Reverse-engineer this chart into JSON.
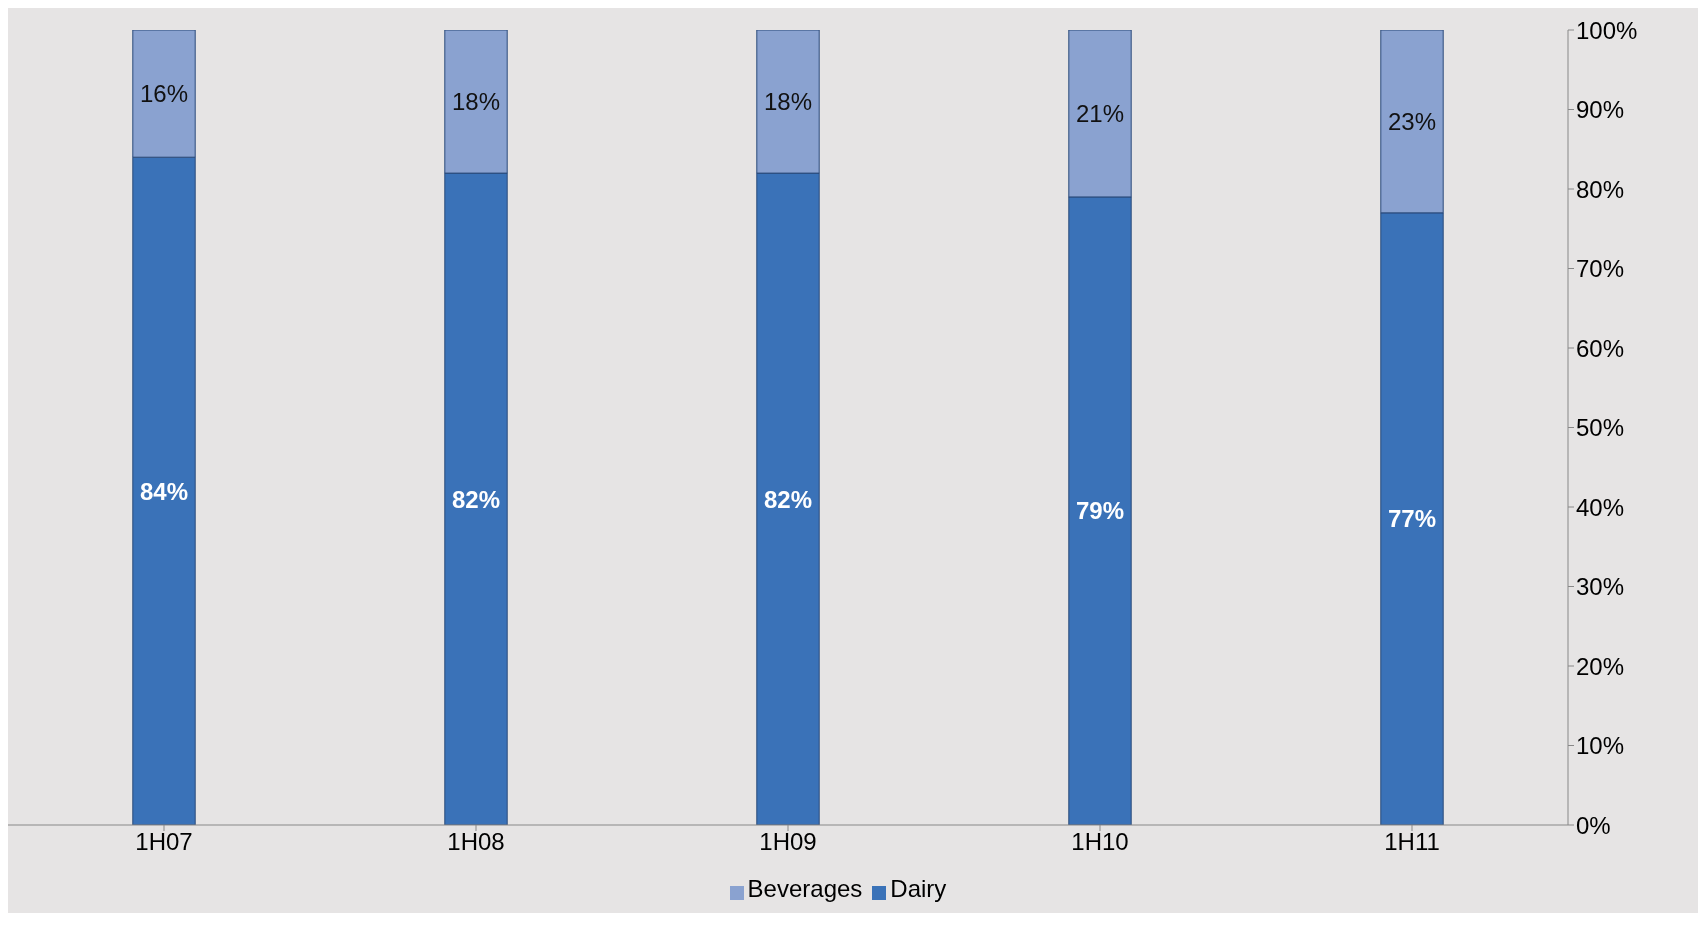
{
  "chart_data": {
    "type": "bar",
    "stacked": true,
    "categories": [
      "1H07",
      "1H08",
      "1H09",
      "1H10",
      "1H11"
    ],
    "series": [
      {
        "name": "Dairy",
        "color": "#3a72b8",
        "values": [
          84,
          82,
          82,
          79,
          77
        ],
        "value_labels": [
          "84%",
          "82%",
          "82%",
          "79%",
          "77%"
        ]
      },
      {
        "name": "Beverages",
        "color": "#8aa2d0",
        "values": [
          16,
          18,
          18,
          21,
          23
        ],
        "value_labels": [
          "16%",
          "18%",
          "18%",
          "21%",
          "23%"
        ]
      }
    ],
    "ylim": [
      0,
      100
    ],
    "yticks": [
      {
        "value": 0,
        "label": "0%"
      },
      {
        "value": 10,
        "label": "10%"
      },
      {
        "value": 20,
        "label": "20%"
      },
      {
        "value": 30,
        "label": "30%"
      },
      {
        "value": 40,
        "label": "40%"
      },
      {
        "value": 50,
        "label": "50%"
      },
      {
        "value": 60,
        "label": "60%"
      },
      {
        "value": 70,
        "label": "70%"
      },
      {
        "value": 80,
        "label": "80%"
      },
      {
        "value": 90,
        "label": "90%"
      },
      {
        "value": 100,
        "label": "100%"
      }
    ],
    "grid": false,
    "legend": "bottom"
  }
}
